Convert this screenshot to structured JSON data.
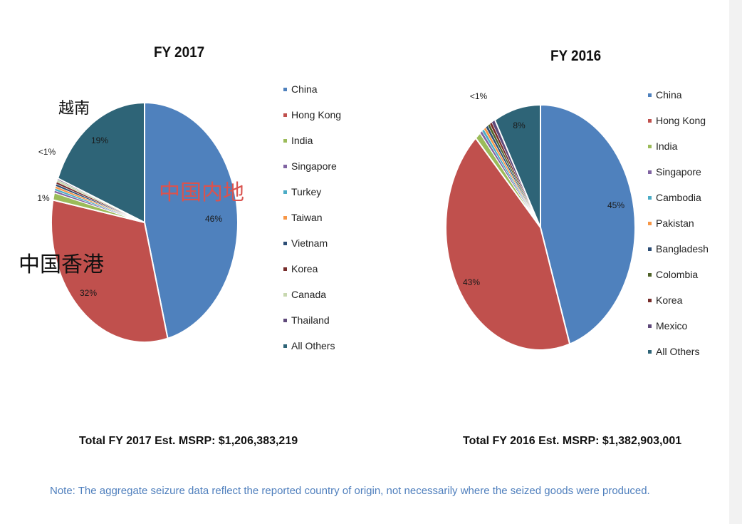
{
  "chart_data": [
    {
      "type": "pie",
      "title": "FY 2017",
      "categories": [
        "China",
        "Hong Kong",
        "India",
        "Singapore",
        "Turkey",
        "Taiwan",
        "Vietnam",
        "Korea",
        "Canada",
        "Thailand",
        "All Others"
      ],
      "values": [
        46,
        32,
        1,
        0.3,
        0.3,
        0.3,
        0.3,
        0.3,
        0.3,
        0.2,
        19
      ],
      "colors": [
        "#4f81bd",
        "#c0504d",
        "#9bbb59",
        "#8064a2",
        "#4bacc6",
        "#f79646",
        "#2c4d75",
        "#772c2a",
        "#c8d8b0",
        "#5f497a",
        "#2e6477"
      ],
      "data_labels": {
        "china": "46%",
        "hong_kong": "32%",
        "india": "1%",
        "small": "<1%",
        "all_others": "19%"
      },
      "total": "Total FY 2017 Est. MSRP:  $1,206,383,219",
      "legend_position": "right",
      "annotations": {
        "vietnam": "越南",
        "mainland": "中国内地",
        "hongkong": "中国香港"
      }
    },
    {
      "type": "pie",
      "title": "FY 2016",
      "categories": [
        "China",
        "Hong Kong",
        "India",
        "Singapore",
        "Cambodia",
        "Pakistan",
        "Bangladesh",
        "Colombia",
        "Korea",
        "Mexico",
        "All Others"
      ],
      "values": [
        45,
        43,
        1,
        0.4,
        0.4,
        0.4,
        0.4,
        0.4,
        0.4,
        0.6,
        8
      ],
      "colors": [
        "#4f81bd",
        "#c0504d",
        "#9bbb59",
        "#8064a2",
        "#4bacc6",
        "#f79646",
        "#2c4d75",
        "#4f6228",
        "#772c2a",
        "#5f497a",
        "#2e6477"
      ],
      "data_labels": {
        "china": "45%",
        "hong_kong": "43%",
        "small": "<1%",
        "all_others": "8%"
      },
      "total": "Total FY 2016 Est. MSRP:  $1,382,903,001",
      "legend_position": "right"
    }
  ],
  "note": "Note: The aggregate seizure data reflect the reported country of origin, not necessarily where the seized goods were produced."
}
